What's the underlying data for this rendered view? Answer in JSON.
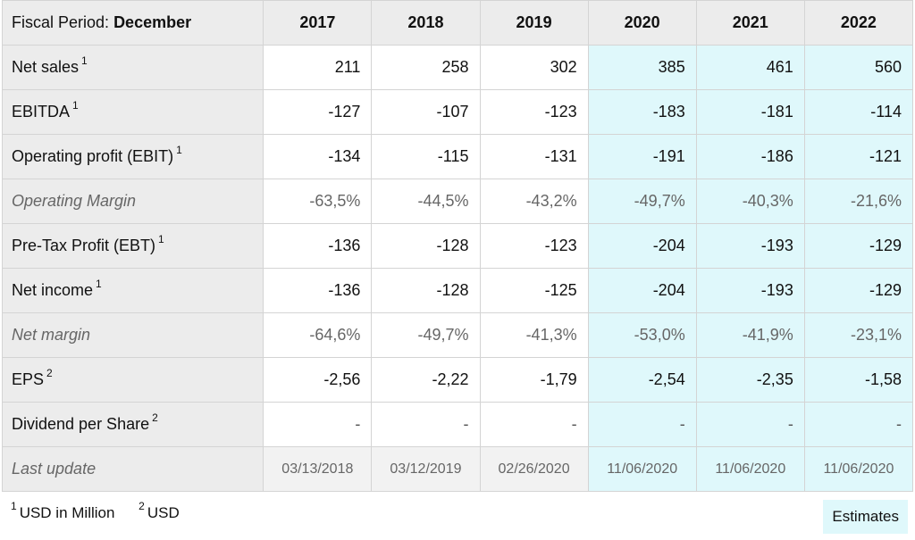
{
  "header": {
    "period_label": "Fiscal Period:",
    "period_value": "December",
    "years": [
      "2017",
      "2018",
      "2019",
      "2020",
      "2021",
      "2022"
    ]
  },
  "rows": [
    {
      "label": "Net sales",
      "note": "1",
      "values": [
        "211",
        "258",
        "302",
        "385",
        "461",
        "560"
      ]
    },
    {
      "label": "EBITDA",
      "note": "1",
      "values": [
        "-127",
        "-107",
        "-123",
        "-183",
        "-181",
        "-114"
      ]
    },
    {
      "label": "Operating profit (EBIT)",
      "note": "1",
      "values": [
        "-134",
        "-115",
        "-131",
        "-191",
        "-186",
        "-121"
      ]
    },
    {
      "label": "Operating Margin",
      "note": "",
      "values": [
        "-63,5%",
        "-44,5%",
        "-43,2%",
        "-49,7%",
        "-40,3%",
        "-21,6%"
      ]
    },
    {
      "label": "Pre-Tax Profit (EBT)",
      "note": "1",
      "values": [
        "-136",
        "-128",
        "-123",
        "-204",
        "-193",
        "-129"
      ]
    },
    {
      "label": "Net income",
      "note": "1",
      "values": [
        "-136",
        "-128",
        "-125",
        "-204",
        "-193",
        "-129"
      ]
    },
    {
      "label": "Net margin",
      "note": "",
      "values": [
        "-64,6%",
        "-49,7%",
        "-41,3%",
        "-53,0%",
        "-41,9%",
        "-23,1%"
      ]
    },
    {
      "label": "EPS",
      "note": "2",
      "values": [
        "-2,56",
        "-2,22",
        "-1,79",
        "-2,54",
        "-2,35",
        "-1,58"
      ]
    },
    {
      "label": "Dividend per Share",
      "note": "2",
      "values": [
        "-",
        "-",
        "-",
        "-",
        "-",
        "-"
      ]
    },
    {
      "label": "Last update",
      "note": "",
      "values": [
        "03/13/2018",
        "03/12/2019",
        "02/26/2020",
        "11/06/2020",
        "11/06/2020",
        "11/06/2020"
      ]
    }
  ],
  "footnotes": {
    "n1_mark": "1",
    "n1_text": "USD in Million",
    "n2_mark": "2",
    "n2_text": "USD"
  },
  "estimates_label": "Estimates",
  "colors": {
    "estimate_bg": "#dff8fb",
    "header_bg": "#ececec"
  }
}
